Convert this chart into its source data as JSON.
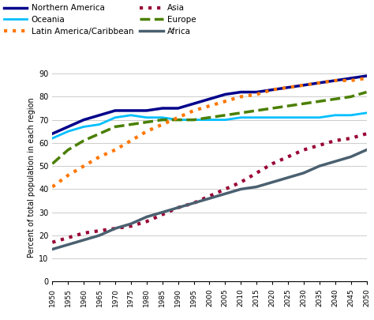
{
  "years": [
    1950,
    1955,
    1960,
    1965,
    1970,
    1975,
    1980,
    1985,
    1990,
    1995,
    2000,
    2005,
    2010,
    2015,
    2020,
    2025,
    2030,
    2035,
    2040,
    2045,
    2050
  ],
  "northern_america": [
    64,
    67,
    70,
    72,
    74,
    74,
    74,
    75,
    75,
    77,
    79,
    81,
    82,
    82,
    83,
    84,
    85,
    86,
    87,
    88,
    89
  ],
  "oceania": [
    62,
    65,
    67,
    68,
    71,
    72,
    71,
    71,
    70,
    70,
    70,
    70,
    71,
    71,
    71,
    71,
    71,
    71,
    72,
    72,
    73
  ],
  "latin_america": [
    41,
    46,
    50,
    54,
    57,
    61,
    65,
    68,
    71,
    74,
    76,
    78,
    80,
    81,
    83,
    84,
    85,
    86,
    87,
    87,
    88
  ],
  "asia": [
    17,
    19,
    21,
    22,
    23,
    24,
    26,
    29,
    32,
    34,
    37,
    40,
    43,
    47,
    51,
    54,
    57,
    59,
    61,
    62,
    64
  ],
  "europe": [
    51,
    57,
    61,
    64,
    67,
    68,
    69,
    70,
    70,
    70,
    71,
    72,
    73,
    74,
    75,
    76,
    77,
    78,
    79,
    80,
    82
  ],
  "africa": [
    14,
    16,
    18,
    20,
    23,
    25,
    28,
    30,
    32,
    34,
    36,
    38,
    40,
    41,
    43,
    45,
    47,
    50,
    52,
    54,
    57
  ],
  "colors": {
    "northern_america": "#00008b",
    "oceania": "#00bfff",
    "latin_america": "#ff7700",
    "asia": "#990033",
    "europe": "#4a7f00",
    "africa": "#4a6070"
  },
  "ylim": [
    0,
    90
  ],
  "yticks": [
    0,
    10,
    20,
    30,
    40,
    50,
    60,
    70,
    80,
    90
  ],
  "ylabel": "Percent of total population in each region",
  "background_color": "#ffffff",
  "grid_color": "#cccccc",
  "legend": [
    {
      "label": "Northern America",
      "key": "northern_america",
      "linestyle": "-",
      "linewidth": 2.5
    },
    {
      "label": "Oceania",
      "key": "oceania",
      "linestyle": "-",
      "linewidth": 2.0
    },
    {
      "label": "Latin America/Caribbean",
      "key": "latin_america",
      "linestyle": ":",
      "linewidth": 3.0
    },
    {
      "label": "Asia",
      "key": "asia",
      "linestyle": ":",
      "linewidth": 3.0
    },
    {
      "label": "Europe",
      "key": "europe",
      "linestyle": "--",
      "linewidth": 2.5
    },
    {
      "label": "Africa",
      "key": "africa",
      "linestyle": "-",
      "linewidth": 2.5
    }
  ]
}
